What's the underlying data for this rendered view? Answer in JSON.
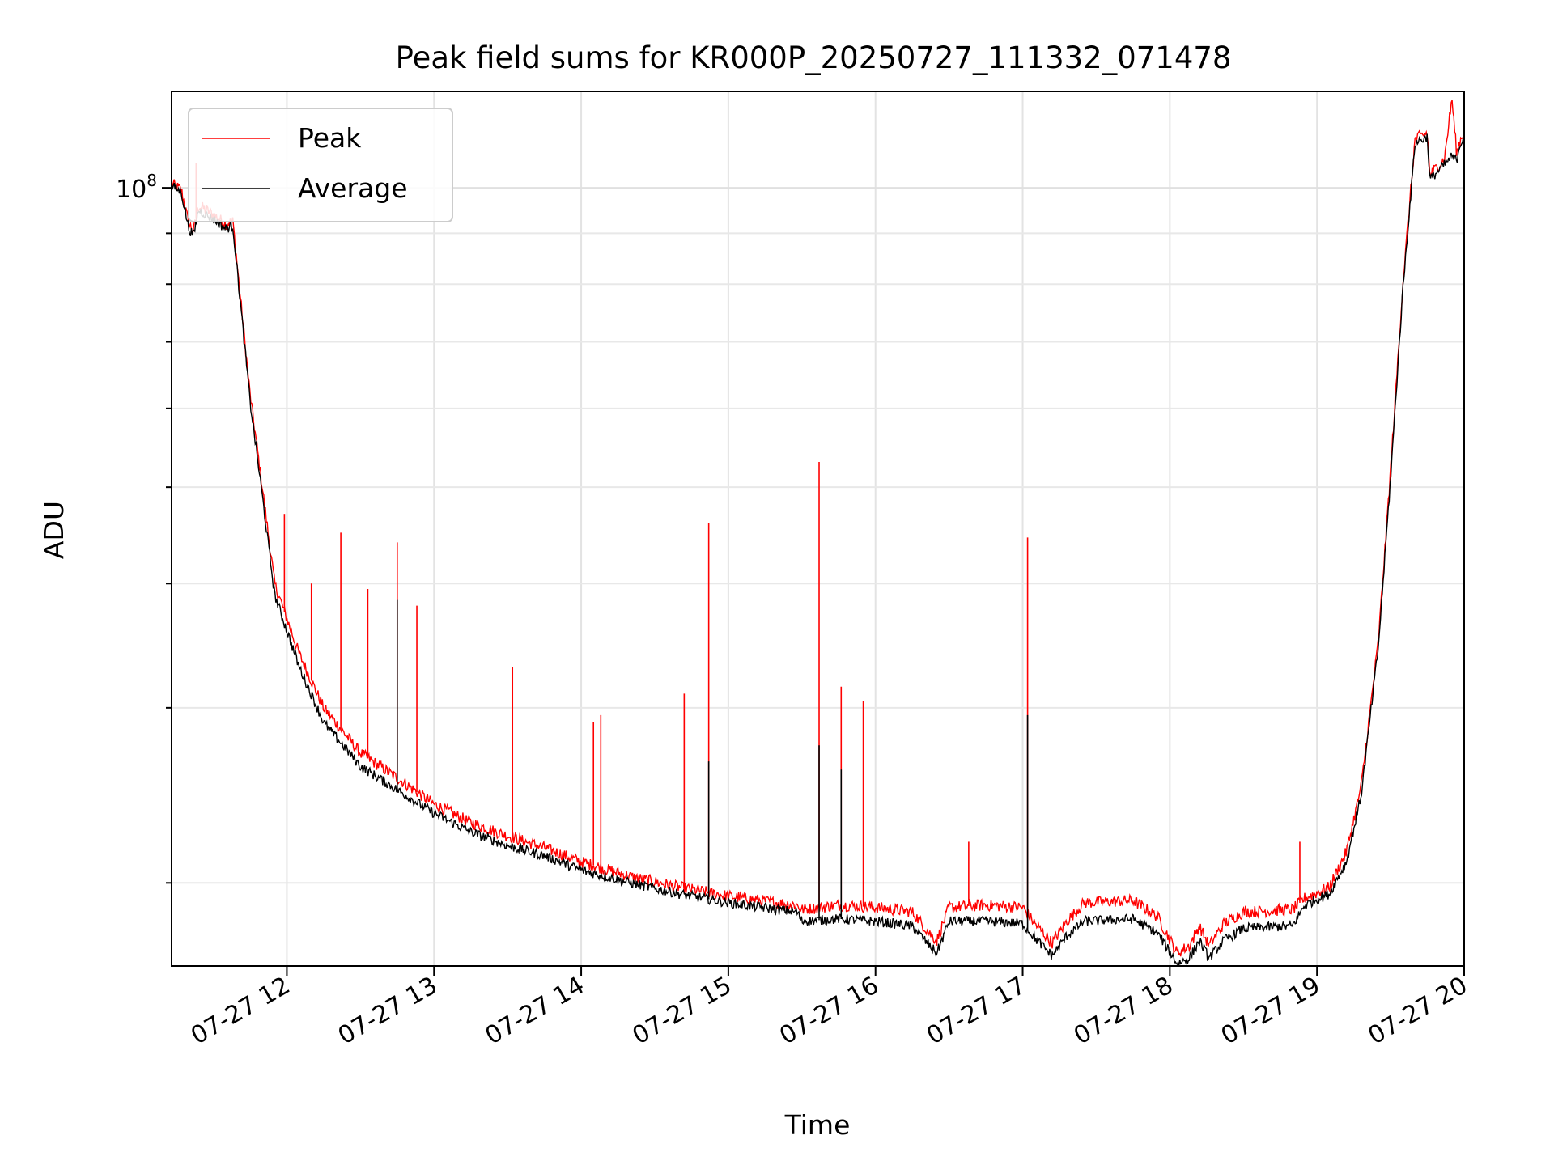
{
  "chart_data": {
    "type": "line",
    "title": "Peak field sums for KR000P_20250727_111332_071478",
    "xlabel": "Time",
    "ylabel": "ADU",
    "x_range": [
      "2025-07-27T11:13",
      "2025-07-27T20:00"
    ],
    "x_ticks": [
      {
        "t": "2025-07-27T12:00",
        "label": "07-27 12"
      },
      {
        "t": "2025-07-27T13:00",
        "label": "07-27 13"
      },
      {
        "t": "2025-07-27T14:00",
        "label": "07-27 14"
      },
      {
        "t": "2025-07-27T15:00",
        "label": "07-27 15"
      },
      {
        "t": "2025-07-27T16:00",
        "label": "07-27 16"
      },
      {
        "t": "2025-07-27T17:00",
        "label": "07-27 17"
      },
      {
        "t": "2025-07-27T18:00",
        "label": "07-27 18"
      },
      {
        "t": "2025-07-27T19:00",
        "label": "07-27 19"
      },
      {
        "t": "2025-07-27T20:00",
        "label": "07-27 20"
      }
    ],
    "y_scale": "log",
    "y_range": [
      16500000,
      125000000
    ],
    "y_major_ticks": [
      {
        "value": 100000000,
        "base": "10",
        "exp": "8"
      }
    ],
    "y_minor_ticks": [
      20000000,
      30000000,
      40000000,
      50000000,
      60000000,
      70000000,
      80000000,
      90000000
    ],
    "grid": true,
    "legend_position": "upper-left",
    "series": [
      {
        "name": "Peak",
        "color": "#ff0000",
        "points": [
          [
            "2025-07-27T11:13",
            101000000
          ],
          [
            "2025-07-27T11:17",
            99500000
          ],
          [
            "2025-07-27T11:20",
            92000000
          ],
          [
            "2025-07-27T11:22",
            90500000
          ],
          [
            "2025-07-27T11:24",
            96000000
          ],
          [
            "2025-07-27T11:30",
            94000000
          ],
          [
            "2025-07-27T11:35",
            92000000
          ],
          [
            "2025-07-27T11:38",
            92500000
          ],
          [
            "2025-07-27T11:45",
            62000000
          ],
          [
            "2025-07-27T11:50",
            50000000
          ],
          [
            "2025-07-27T11:55",
            40000000
          ],
          [
            "2025-07-27T12:05",
            34000000
          ],
          [
            "2025-07-27T12:15",
            30000000
          ],
          [
            "2025-07-27T12:30",
            27000000
          ],
          [
            "2025-07-27T12:45",
            25500000
          ],
          [
            "2025-07-27T13:00",
            24000000
          ],
          [
            "2025-07-27T13:15",
            23000000
          ],
          [
            "2025-07-27T13:30",
            22300000
          ],
          [
            "2025-07-27T13:45",
            21700000
          ],
          [
            "2025-07-27T14:00",
            21000000
          ],
          [
            "2025-07-27T14:20",
            20300000
          ],
          [
            "2025-07-27T14:40",
            19800000
          ],
          [
            "2025-07-27T15:00",
            19400000
          ],
          [
            "2025-07-27T15:20",
            19100000
          ],
          [
            "2025-07-27T15:28",
            19000000
          ],
          [
            "2025-07-27T15:30",
            18800000
          ],
          [
            "2025-07-27T15:45",
            19000000
          ],
          [
            "2025-07-27T16:00",
            18900000
          ],
          [
            "2025-07-27T16:15",
            18700000
          ],
          [
            "2025-07-27T16:22",
            17800000
          ],
          [
            "2025-07-27T16:25",
            17500000
          ],
          [
            "2025-07-27T16:30",
            18900000
          ],
          [
            "2025-07-27T16:45",
            19000000
          ],
          [
            "2025-07-27T17:00",
            18900000
          ],
          [
            "2025-07-27T17:05",
            18200000
          ],
          [
            "2025-07-27T17:12",
            17400000
          ],
          [
            "2025-07-27T17:18",
            18300000
          ],
          [
            "2025-07-27T17:25",
            19100000
          ],
          [
            "2025-07-27T17:45",
            19200000
          ],
          [
            "2025-07-27T17:55",
            18500000
          ],
          [
            "2025-07-27T18:03",
            17000000
          ],
          [
            "2025-07-27T18:08",
            17300000
          ],
          [
            "2025-07-27T18:12",
            18100000
          ],
          [
            "2025-07-27T18:16",
            17300000
          ],
          [
            "2025-07-27T18:22",
            18200000
          ],
          [
            "2025-07-27T18:30",
            18700000
          ],
          [
            "2025-07-27T18:50",
            18800000
          ],
          [
            "2025-07-27T18:55",
            19300000
          ],
          [
            "2025-07-27T19:05",
            19800000
          ],
          [
            "2025-07-27T19:12",
            21500000
          ],
          [
            "2025-07-27T19:18",
            25000000
          ],
          [
            "2025-07-27T19:25",
            35000000
          ],
          [
            "2025-07-27T19:30",
            52000000
          ],
          [
            "2025-07-27T19:35",
            80000000
          ],
          [
            "2025-07-27T19:40",
            112000000
          ],
          [
            "2025-07-27T19:45",
            113500000
          ],
          [
            "2025-07-27T19:46",
            103000000
          ],
          [
            "2025-07-27T19:52",
            107000000
          ],
          [
            "2025-07-27T19:55",
            123000000
          ],
          [
            "2025-07-27T19:57",
            108000000
          ],
          [
            "2025-07-27T19:58",
            111000000
          ],
          [
            "2025-07-27T20:00",
            114000000
          ]
        ],
        "spikes": [
          [
            "2025-07-27T11:23",
            106000000
          ],
          [
            "2025-07-27T11:59",
            47000000
          ],
          [
            "2025-07-27T12:10",
            40000000
          ],
          [
            "2025-07-27T12:22",
            45000000
          ],
          [
            "2025-07-27T12:33",
            39500000
          ],
          [
            "2025-07-27T12:45",
            44000000
          ],
          [
            "2025-07-27T12:53",
            38000000
          ],
          [
            "2025-07-27T13:32",
            33000000
          ],
          [
            "2025-07-27T14:05",
            29000000
          ],
          [
            "2025-07-27T14:08",
            29500000
          ],
          [
            "2025-07-27T14:42",
            31000000
          ],
          [
            "2025-07-27T14:52",
            46000000
          ],
          [
            "2025-07-27T15:37",
            53000000
          ],
          [
            "2025-07-27T15:46",
            31500000
          ],
          [
            "2025-07-27T15:55",
            30500000
          ],
          [
            "2025-07-27T16:38",
            22000000
          ],
          [
            "2025-07-27T17:02",
            44500000
          ],
          [
            "2025-07-27T18:53",
            22000000
          ]
        ]
      },
      {
        "name": "Average",
        "color": "#000000",
        "points": [
          [
            "2025-07-27T11:13",
            100500000
          ],
          [
            "2025-07-27T11:17",
            99000000
          ],
          [
            "2025-07-27T11:20",
            91000000
          ],
          [
            "2025-07-27T11:22",
            89500000
          ],
          [
            "2025-07-27T11:24",
            95000000
          ],
          [
            "2025-07-27T11:30",
            93000000
          ],
          [
            "2025-07-27T11:35",
            91000000
          ],
          [
            "2025-07-27T11:38",
            91500000
          ],
          [
            "2025-07-27T11:45",
            61000000
          ],
          [
            "2025-07-27T11:50",
            49000000
          ],
          [
            "2025-07-27T11:55",
            39000000
          ],
          [
            "2025-07-27T12:05",
            33000000
          ],
          [
            "2025-07-27T12:15",
            29000000
          ],
          [
            "2025-07-27T12:30",
            26200000
          ],
          [
            "2025-07-27T12:45",
            24800000
          ],
          [
            "2025-07-27T13:00",
            23500000
          ],
          [
            "2025-07-27T13:15",
            22500000
          ],
          [
            "2025-07-27T13:30",
            21800000
          ],
          [
            "2025-07-27T13:45",
            21300000
          ],
          [
            "2025-07-27T14:00",
            20600000
          ],
          [
            "2025-07-27T14:20",
            20000000
          ],
          [
            "2025-07-27T14:40",
            19500000
          ],
          [
            "2025-07-27T15:00",
            19100000
          ],
          [
            "2025-07-27T15:20",
            18800000
          ],
          [
            "2025-07-27T15:28",
            18700000
          ],
          [
            "2025-07-27T15:30",
            18300000
          ],
          [
            "2025-07-27T15:45",
            18400000
          ],
          [
            "2025-07-27T16:00",
            18300000
          ],
          [
            "2025-07-27T16:15",
            18100000
          ],
          [
            "2025-07-27T16:22",
            17300000
          ],
          [
            "2025-07-27T16:25",
            17000000
          ],
          [
            "2025-07-27T16:30",
            18300000
          ],
          [
            "2025-07-27T16:45",
            18300000
          ],
          [
            "2025-07-27T17:00",
            18200000
          ],
          [
            "2025-07-27T17:05",
            17600000
          ],
          [
            "2025-07-27T17:12",
            16900000
          ],
          [
            "2025-07-27T17:18",
            17700000
          ],
          [
            "2025-07-27T17:25",
            18300000
          ],
          [
            "2025-07-27T17:45",
            18400000
          ],
          [
            "2025-07-27T17:55",
            17800000
          ],
          [
            "2025-07-27T18:03",
            16600000
          ],
          [
            "2025-07-27T18:08",
            16800000
          ],
          [
            "2025-07-27T18:12",
            17500000
          ],
          [
            "2025-07-27T18:16",
            16800000
          ],
          [
            "2025-07-27T18:22",
            17500000
          ],
          [
            "2025-07-27T18:30",
            18000000
          ],
          [
            "2025-07-27T18:50",
            18100000
          ],
          [
            "2025-07-27T18:55",
            19000000
          ],
          [
            "2025-07-27T19:05",
            19500000
          ],
          [
            "2025-07-27T19:12",
            21000000
          ],
          [
            "2025-07-27T19:18",
            24500000
          ],
          [
            "2025-07-27T19:25",
            34500000
          ],
          [
            "2025-07-27T19:30",
            51000000
          ],
          [
            "2025-07-27T19:35",
            79000000
          ],
          [
            "2025-07-27T19:40",
            111000000
          ],
          [
            "2025-07-27T19:45",
            112500000
          ],
          [
            "2025-07-27T19:46",
            102000000
          ],
          [
            "2025-07-27T19:52",
            105500000
          ],
          [
            "2025-07-27T19:55",
            107500000
          ],
          [
            "2025-07-27T19:57",
            106500000
          ],
          [
            "2025-07-27T19:58",
            110000000
          ],
          [
            "2025-07-27T20:00",
            113000000
          ]
        ],
        "spikes": [
          [
            "2025-07-27T12:45",
            38500000
          ],
          [
            "2025-07-27T15:37",
            27500000
          ],
          [
            "2025-07-27T15:46",
            26000000
          ],
          [
            "2025-07-27T17:02",
            29500000
          ],
          [
            "2025-07-27T14:52",
            26500000
          ]
        ]
      }
    ]
  }
}
